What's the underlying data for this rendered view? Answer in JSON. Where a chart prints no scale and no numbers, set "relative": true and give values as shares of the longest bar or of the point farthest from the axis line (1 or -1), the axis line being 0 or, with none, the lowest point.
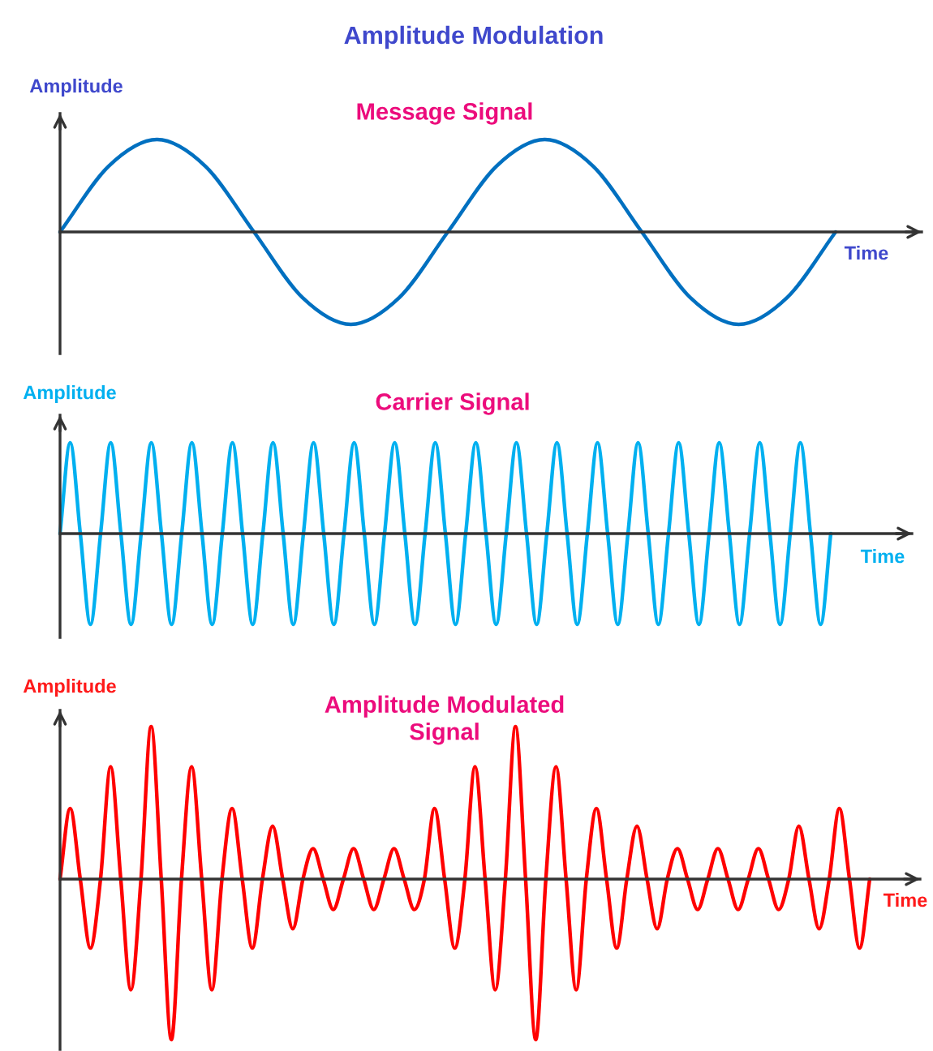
{
  "chart_data": [
    {
      "type": "line",
      "title": "Amplitude Modulation",
      "subtitle": "Message Signal",
      "xlabel": "Time",
      "ylabel": "Amplitude",
      "relative": true,
      "color": "#0070c0",
      "categories": [
        null,
        null,
        null,
        null,
        null,
        null,
        null,
        null,
        null,
        null,
        null,
        null,
        null,
        null,
        null,
        null,
        null
      ],
      "values": [
        0,
        0.71,
        1,
        0.71,
        0,
        -0.71,
        -1,
        -0.71,
        0,
        0.71,
        1,
        0.71,
        0,
        -0.71,
        -1,
        -0.71,
        0
      ]
    },
    {
      "type": "line",
      "title": "Carrier Signal",
      "xlabel": "Time",
      "ylabel": "Amplitude",
      "relative": true,
      "color": "#00b0f0",
      "categories": [
        null,
        null,
        null,
        null,
        null,
        null,
        null,
        null,
        null,
        null,
        null,
        null,
        null,
        null,
        null,
        null,
        null,
        null,
        null,
        null,
        null,
        null,
        null,
        null,
        null,
        null,
        null,
        null,
        null,
        null,
        null,
        null,
        null,
        null,
        null,
        null,
        null,
        null,
        null,
        null,
        null,
        null,
        null,
        null,
        null,
        null,
        null,
        null,
        null,
        null,
        null,
        null,
        null,
        null,
        null,
        null,
        null,
        null,
        null,
        null,
        null,
        null,
        null,
        null,
        null,
        null,
        null,
        null,
        null,
        null,
        null,
        null,
        null,
        null,
        null,
        null,
        null
      ],
      "values": [
        0,
        1,
        0,
        -1,
        0,
        1,
        0,
        -1,
        0,
        1,
        0,
        -1,
        0,
        1,
        0,
        -1,
        0,
        1,
        0,
        -1,
        0,
        1,
        0,
        -1,
        0,
        1,
        0,
        -1,
        0,
        1,
        0,
        -1,
        0,
        1,
        0,
        -1,
        0,
        1,
        0,
        -1,
        0,
        1,
        0,
        -1,
        0,
        1,
        0,
        -1,
        0,
        1,
        0,
        -1,
        0,
        1,
        0,
        -1,
        0,
        1,
        0,
        -1,
        0,
        1,
        0,
        -1,
        0,
        1,
        0,
        -1,
        0,
        1,
        0,
        -1,
        0,
        1,
        0,
        -1,
        0
      ]
    },
    {
      "type": "line",
      "title": "Amplitude Modulated\nSignal",
      "xlabel": "Time",
      "ylabel": "Amplitude",
      "relative": true,
      "color": "#ff0000",
      "categories": [
        null,
        null,
        null,
        null,
        null,
        null,
        null,
        null,
        null,
        null,
        null,
        null,
        null,
        null,
        null,
        null,
        null,
        null,
        null,
        null,
        null,
        null,
        null,
        null,
        null,
        null,
        null,
        null,
        null,
        null,
        null,
        null,
        null,
        null,
        null,
        null,
        null,
        null,
        null,
        null,
        null,
        null,
        null,
        null,
        null,
        null,
        null,
        null,
        null,
        null,
        null,
        null,
        null,
        null,
        null,
        null,
        null,
        null,
        null,
        null,
        null,
        null,
        null,
        null,
        null,
        null,
        null,
        null,
        null,
        null,
        null,
        null,
        null,
        null,
        null,
        null,
        null,
        null,
        null,
        null,
        null
      ],
      "values": [
        0,
        0.44,
        0,
        -0.43,
        0,
        0.7,
        0,
        -0.69,
        0,
        0.95,
        0,
        -1,
        0,
        0.7,
        0,
        -0.69,
        0,
        0.44,
        0,
        -0.43,
        0,
        0.33,
        0,
        -0.31,
        0,
        0.19,
        0,
        -0.19,
        0,
        0.19,
        0,
        -0.19,
        0,
        0.19,
        0,
        -0.19,
        0,
        0.44,
        0,
        -0.43,
        0,
        0.7,
        0,
        -0.69,
        0,
        0.95,
        0,
        -1,
        0,
        0.7,
        0,
        -0.69,
        0,
        0.44,
        0,
        -0.43,
        0,
        0.33,
        0,
        -0.31,
        0,
        0.19,
        0,
        -0.19,
        0,
        0.19,
        0,
        -0.19,
        0,
        0.19,
        0,
        -0.19,
        0,
        0.33,
        0,
        -0.31,
        0,
        0.44,
        0,
        -0.43,
        0
      ]
    }
  ]
}
